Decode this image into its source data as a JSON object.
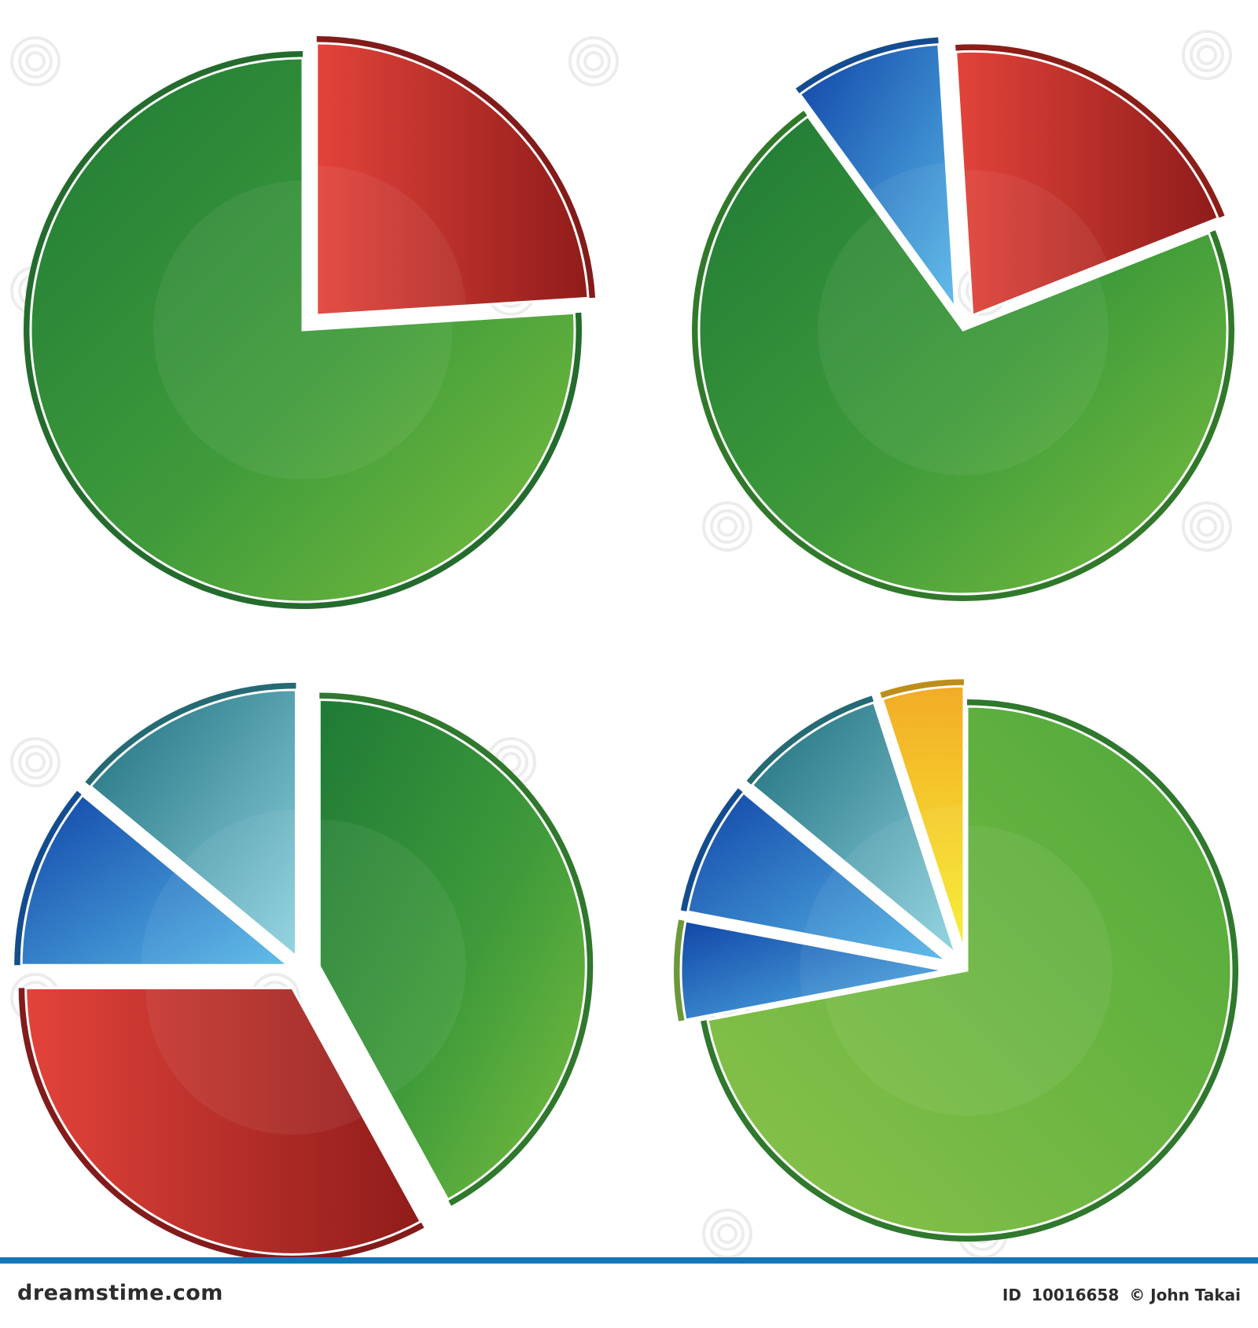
{
  "chart_data": [
    {
      "type": "pie",
      "exploded": "first slice",
      "values": [
        24,
        76
      ],
      "colors": [
        "#a82222",
        "#2e8b3a"
      ]
    },
    {
      "type": "pie",
      "exploded": "first two slices",
      "values": [
        9,
        20,
        71
      ],
      "colors": [
        "#1a62b8",
        "#b3271f",
        "#3f9b36"
      ]
    },
    {
      "type": "pie",
      "exploded": "all slices",
      "values": [
        42,
        33,
        11,
        14
      ],
      "colors": [
        "#3c9a3a",
        "#a82222",
        "#1a62b8",
        "#2f8896"
      ]
    },
    {
      "type": "pie",
      "exploded": "first three slices",
      "values": [
        72,
        6,
        8,
        9,
        5
      ],
      "colors": [
        "#3c9a3a",
        "#8bc34a",
        "#1a62b8",
        "#2f8896",
        "#f2b623"
      ]
    }
  ],
  "footer": {
    "brand": "dreamstime.com",
    "id_label": "ID",
    "id": "10016658",
    "credit": "© John Takai"
  },
  "icons": {
    "watermark": "spiral-watermark-icon"
  }
}
